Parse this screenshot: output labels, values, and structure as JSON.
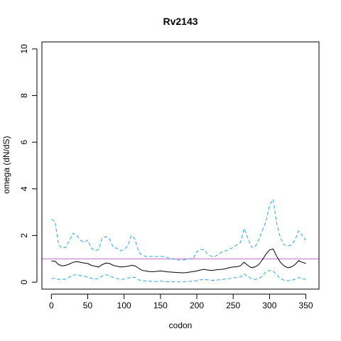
{
  "chart_data": {
    "type": "line",
    "title": "Rv2143",
    "xlabel": "codon",
    "ylabel": "omega (dN/dS)",
    "xlim": [
      -13,
      368
    ],
    "ylim": [
      -0.3,
      10.3
    ],
    "xticks": [
      0,
      50,
      100,
      150,
      200,
      250,
      300,
      350
    ],
    "yticks": [
      0,
      2,
      4,
      6,
      8,
      10
    ],
    "grid": false,
    "legend": "none",
    "reference_line": {
      "y": 1.0,
      "color": "#cc66cc"
    },
    "series": [
      {
        "role": "omega",
        "style": "solid",
        "color": "#000000",
        "x": [
          0,
          5,
          10,
          15,
          20,
          25,
          30,
          35,
          40,
          45,
          50,
          55,
          60,
          65,
          70,
          75,
          80,
          85,
          90,
          95,
          100,
          105,
          110,
          115,
          120,
          125,
          130,
          135,
          140,
          145,
          150,
          155,
          160,
          165,
          170,
          175,
          180,
          185,
          190,
          195,
          200,
          205,
          210,
          215,
          220,
          225,
          230,
          235,
          240,
          245,
          250,
          255,
          260,
          265,
          270,
          275,
          280,
          285,
          290,
          295,
          300,
          305,
          310,
          315,
          320,
          325,
          330,
          335,
          340,
          345,
          350
        ],
        "y": [
          0.9,
          0.9,
          0.75,
          0.7,
          0.72,
          0.78,
          0.85,
          0.88,
          0.85,
          0.82,
          0.8,
          0.72,
          0.68,
          0.65,
          0.75,
          0.82,
          0.8,
          0.72,
          0.68,
          0.65,
          0.66,
          0.68,
          0.72,
          0.7,
          0.6,
          0.5,
          0.48,
          0.45,
          0.45,
          0.46,
          0.48,
          0.46,
          0.44,
          0.43,
          0.42,
          0.41,
          0.4,
          0.41,
          0.43,
          0.45,
          0.48,
          0.52,
          0.55,
          0.52,
          0.5,
          0.52,
          0.54,
          0.55,
          0.58,
          0.62,
          0.65,
          0.66,
          0.7,
          0.85,
          0.72,
          0.62,
          0.65,
          0.75,
          0.95,
          1.2,
          1.38,
          1.42,
          1.1,
          0.85,
          0.7,
          0.62,
          0.65,
          0.75,
          0.92,
          0.85,
          0.8
        ]
      },
      {
        "role": "upper",
        "style": "dashed",
        "color": "#2aa7e0",
        "x": [
          0,
          5,
          10,
          15,
          20,
          25,
          30,
          35,
          40,
          45,
          50,
          55,
          60,
          65,
          70,
          75,
          80,
          85,
          90,
          95,
          100,
          105,
          110,
          115,
          120,
          125,
          130,
          135,
          140,
          145,
          150,
          155,
          160,
          165,
          170,
          175,
          180,
          185,
          190,
          195,
          200,
          205,
          210,
          215,
          220,
          225,
          230,
          235,
          240,
          245,
          250,
          255,
          260,
          265,
          270,
          275,
          280,
          285,
          290,
          295,
          300,
          305,
          310,
          315,
          320,
          325,
          330,
          335,
          340,
          345,
          350
        ],
        "y": [
          2.7,
          2.6,
          1.6,
          1.45,
          1.5,
          1.8,
          2.1,
          2.0,
          1.8,
          1.7,
          1.8,
          1.45,
          1.35,
          1.4,
          1.9,
          1.95,
          1.85,
          1.5,
          1.45,
          1.35,
          1.4,
          1.55,
          2.0,
          1.85,
          1.3,
          1.15,
          1.1,
          1.1,
          1.1,
          1.1,
          1.1,
          1.1,
          1.05,
          1.0,
          0.98,
          0.95,
          0.95,
          0.97,
          1.0,
          1.0,
          1.3,
          1.4,
          1.4,
          1.2,
          1.1,
          1.1,
          1.2,
          1.3,
          1.35,
          1.4,
          1.5,
          1.6,
          1.7,
          2.3,
          1.9,
          1.5,
          1.5,
          1.8,
          2.2,
          2.6,
          3.3,
          3.55,
          2.5,
          1.9,
          1.6,
          1.55,
          1.6,
          1.8,
          2.2,
          2.0,
          1.8
        ]
      },
      {
        "role": "lower",
        "style": "dashed",
        "color": "#2aa7e0",
        "x": [
          0,
          5,
          10,
          15,
          20,
          25,
          30,
          35,
          40,
          45,
          50,
          55,
          60,
          65,
          70,
          75,
          80,
          85,
          90,
          95,
          100,
          105,
          110,
          115,
          120,
          125,
          130,
          135,
          140,
          145,
          150,
          155,
          160,
          165,
          170,
          175,
          180,
          185,
          190,
          195,
          200,
          205,
          210,
          215,
          220,
          225,
          230,
          235,
          240,
          245,
          250,
          255,
          260,
          265,
          270,
          275,
          280,
          285,
          290,
          295,
          300,
          305,
          310,
          315,
          320,
          325,
          330,
          335,
          340,
          345,
          350
        ],
        "y": [
          0.15,
          0.17,
          0.12,
          0.12,
          0.13,
          0.22,
          0.3,
          0.32,
          0.28,
          0.25,
          0.22,
          0.16,
          0.14,
          0.15,
          0.27,
          0.32,
          0.28,
          0.2,
          0.15,
          0.12,
          0.13,
          0.16,
          0.22,
          0.2,
          0.1,
          0.06,
          0.05,
          0.04,
          0.03,
          0.03,
          0.04,
          0.03,
          0.02,
          0.02,
          0.01,
          0.01,
          0.01,
          0.02,
          0.03,
          0.05,
          0.06,
          0.1,
          0.12,
          0.1,
          0.08,
          0.08,
          0.1,
          0.12,
          0.14,
          0.15,
          0.18,
          0.2,
          0.22,
          0.35,
          0.25,
          0.15,
          0.12,
          0.15,
          0.25,
          0.45,
          0.5,
          0.48,
          0.3,
          0.15,
          0.08,
          0.06,
          0.08,
          0.12,
          0.2,
          0.15,
          0.12
        ]
      }
    ]
  }
}
